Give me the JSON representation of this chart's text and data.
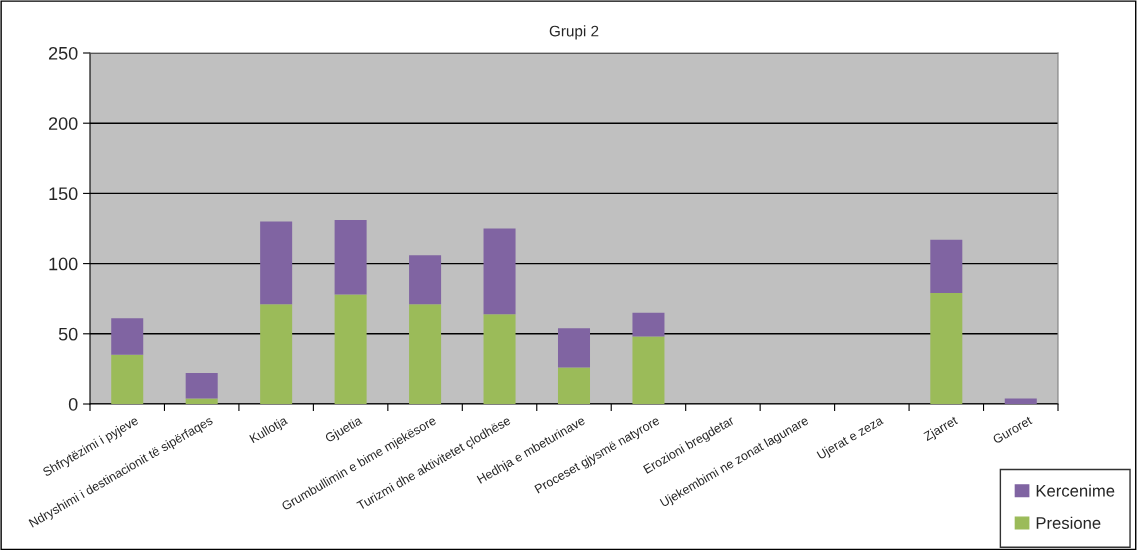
{
  "chart_data": {
    "type": "bar",
    "title": "Grupi 2",
    "stacked": true,
    "categories": [
      "Shfrytëzimi i pyjeve",
      "Ndryshimi i destinacionit të sipërfaqes",
      "Kullotja",
      "Gjuetia",
      "Grumbullimin e bime mjekësore",
      "Turizmi dhe aktivitetet çlodhëse",
      "Hedhja e mbeturinave",
      "Proceset gjysmë natyrore",
      "Erozioni bregdetar",
      "Ujekembimi ne zonat lagunare",
      "Ujerat e zeza",
      "Zjarret",
      "Guroret"
    ],
    "series": [
      {
        "name": "Presione",
        "color": "#9bbb59",
        "values": [
          35,
          4,
          71,
          78,
          71,
          64,
          26,
          48,
          0,
          0,
          0,
          79,
          0
        ]
      },
      {
        "name": "Kercenime",
        "color": "#8064a2",
        "values": [
          26,
          18,
          59,
          53,
          35,
          61,
          28,
          17,
          0,
          0,
          0,
          38,
          4
        ]
      }
    ],
    "ylim": [
      0,
      250
    ],
    "yticks": [
      0,
      50,
      100,
      150,
      200,
      250
    ],
    "grid": "y",
    "legend": "bottom right"
  }
}
